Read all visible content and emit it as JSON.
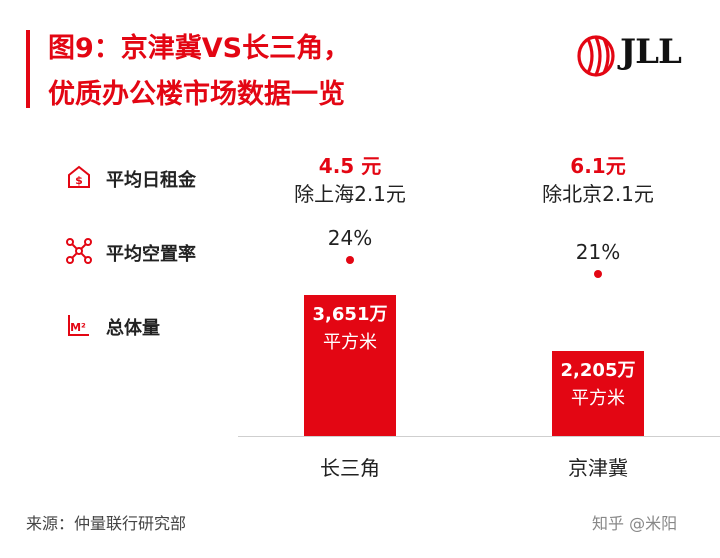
{
  "title_line1": "图9：京津冀VS长三角，",
  "title_line2": "优质办公楼市场数据一览",
  "logo_text": "JLL",
  "rows": {
    "rent_label": "平均日租金",
    "vacancy_label": "平均空置率",
    "volume_label": "总体量"
  },
  "chart_data": {
    "type": "bar",
    "categories": [
      "长三角",
      "京津冀"
    ],
    "series": [
      {
        "name": "总体量",
        "values": [
          3651,
          2205
        ]
      }
    ],
    "value_unit_labels": [
      "3,651万",
      "2,205万"
    ],
    "unit_label": "平方米",
    "rent_values": [
      4.5,
      6.1
    ],
    "rent_labels": [
      "4.5 元",
      "6.1元"
    ],
    "rent_notes": [
      "除上海2.1元",
      "除北京2.1元"
    ],
    "vacancy_values": [
      24,
      21
    ],
    "vacancy_labels": [
      "24%",
      "21%"
    ],
    "ylim": [
      0,
      4000
    ],
    "colors": {
      "bar": "#e30613",
      "accent": "#e30613"
    }
  },
  "source": "来源：仲量联行研究部",
  "watermark": "知乎 @米阳"
}
